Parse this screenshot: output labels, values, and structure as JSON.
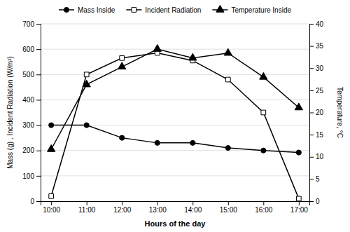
{
  "chart_data": {
    "type": "line",
    "categories": [
      "10:00",
      "11:00",
      "12:00",
      "13:00",
      "14:00",
      "15:00",
      "16:00",
      "17:00"
    ],
    "series": [
      {
        "name": "Mass Inside",
        "color": "black",
        "marker": "circle",
        "values": [
          300,
          300,
          250,
          230,
          230,
          210,
          200,
          192
        ]
      },
      {
        "name": "Incident Radiation",
        "color": "black",
        "marker": "square-open",
        "values": [
          20,
          500,
          565,
          585,
          555,
          480,
          350,
          10
        ]
      },
      {
        "name": "Temperature Inside",
        "color": "black",
        "marker": "triangle-up",
        "axis": "y2",
        "values": [
          11.7,
          26.3,
          30.3,
          34.3,
          32.3,
          33.4,
          28.0,
          21.1
        ]
      }
    ],
    "xlabel": "Hours of the day",
    "ylabel": "Mass (g) , Incident Radiation (W/m²)",
    "y2label": "Temperature, °C",
    "ylim": [
      0,
      700
    ],
    "yticks": [
      0,
      100,
      200,
      300,
      400,
      500,
      600,
      700
    ],
    "y2lim": [
      0,
      40
    ],
    "y2ticks": [
      0,
      5,
      10,
      15,
      20,
      25,
      30,
      35,
      40
    ],
    "grid": true,
    "legend": "top"
  }
}
